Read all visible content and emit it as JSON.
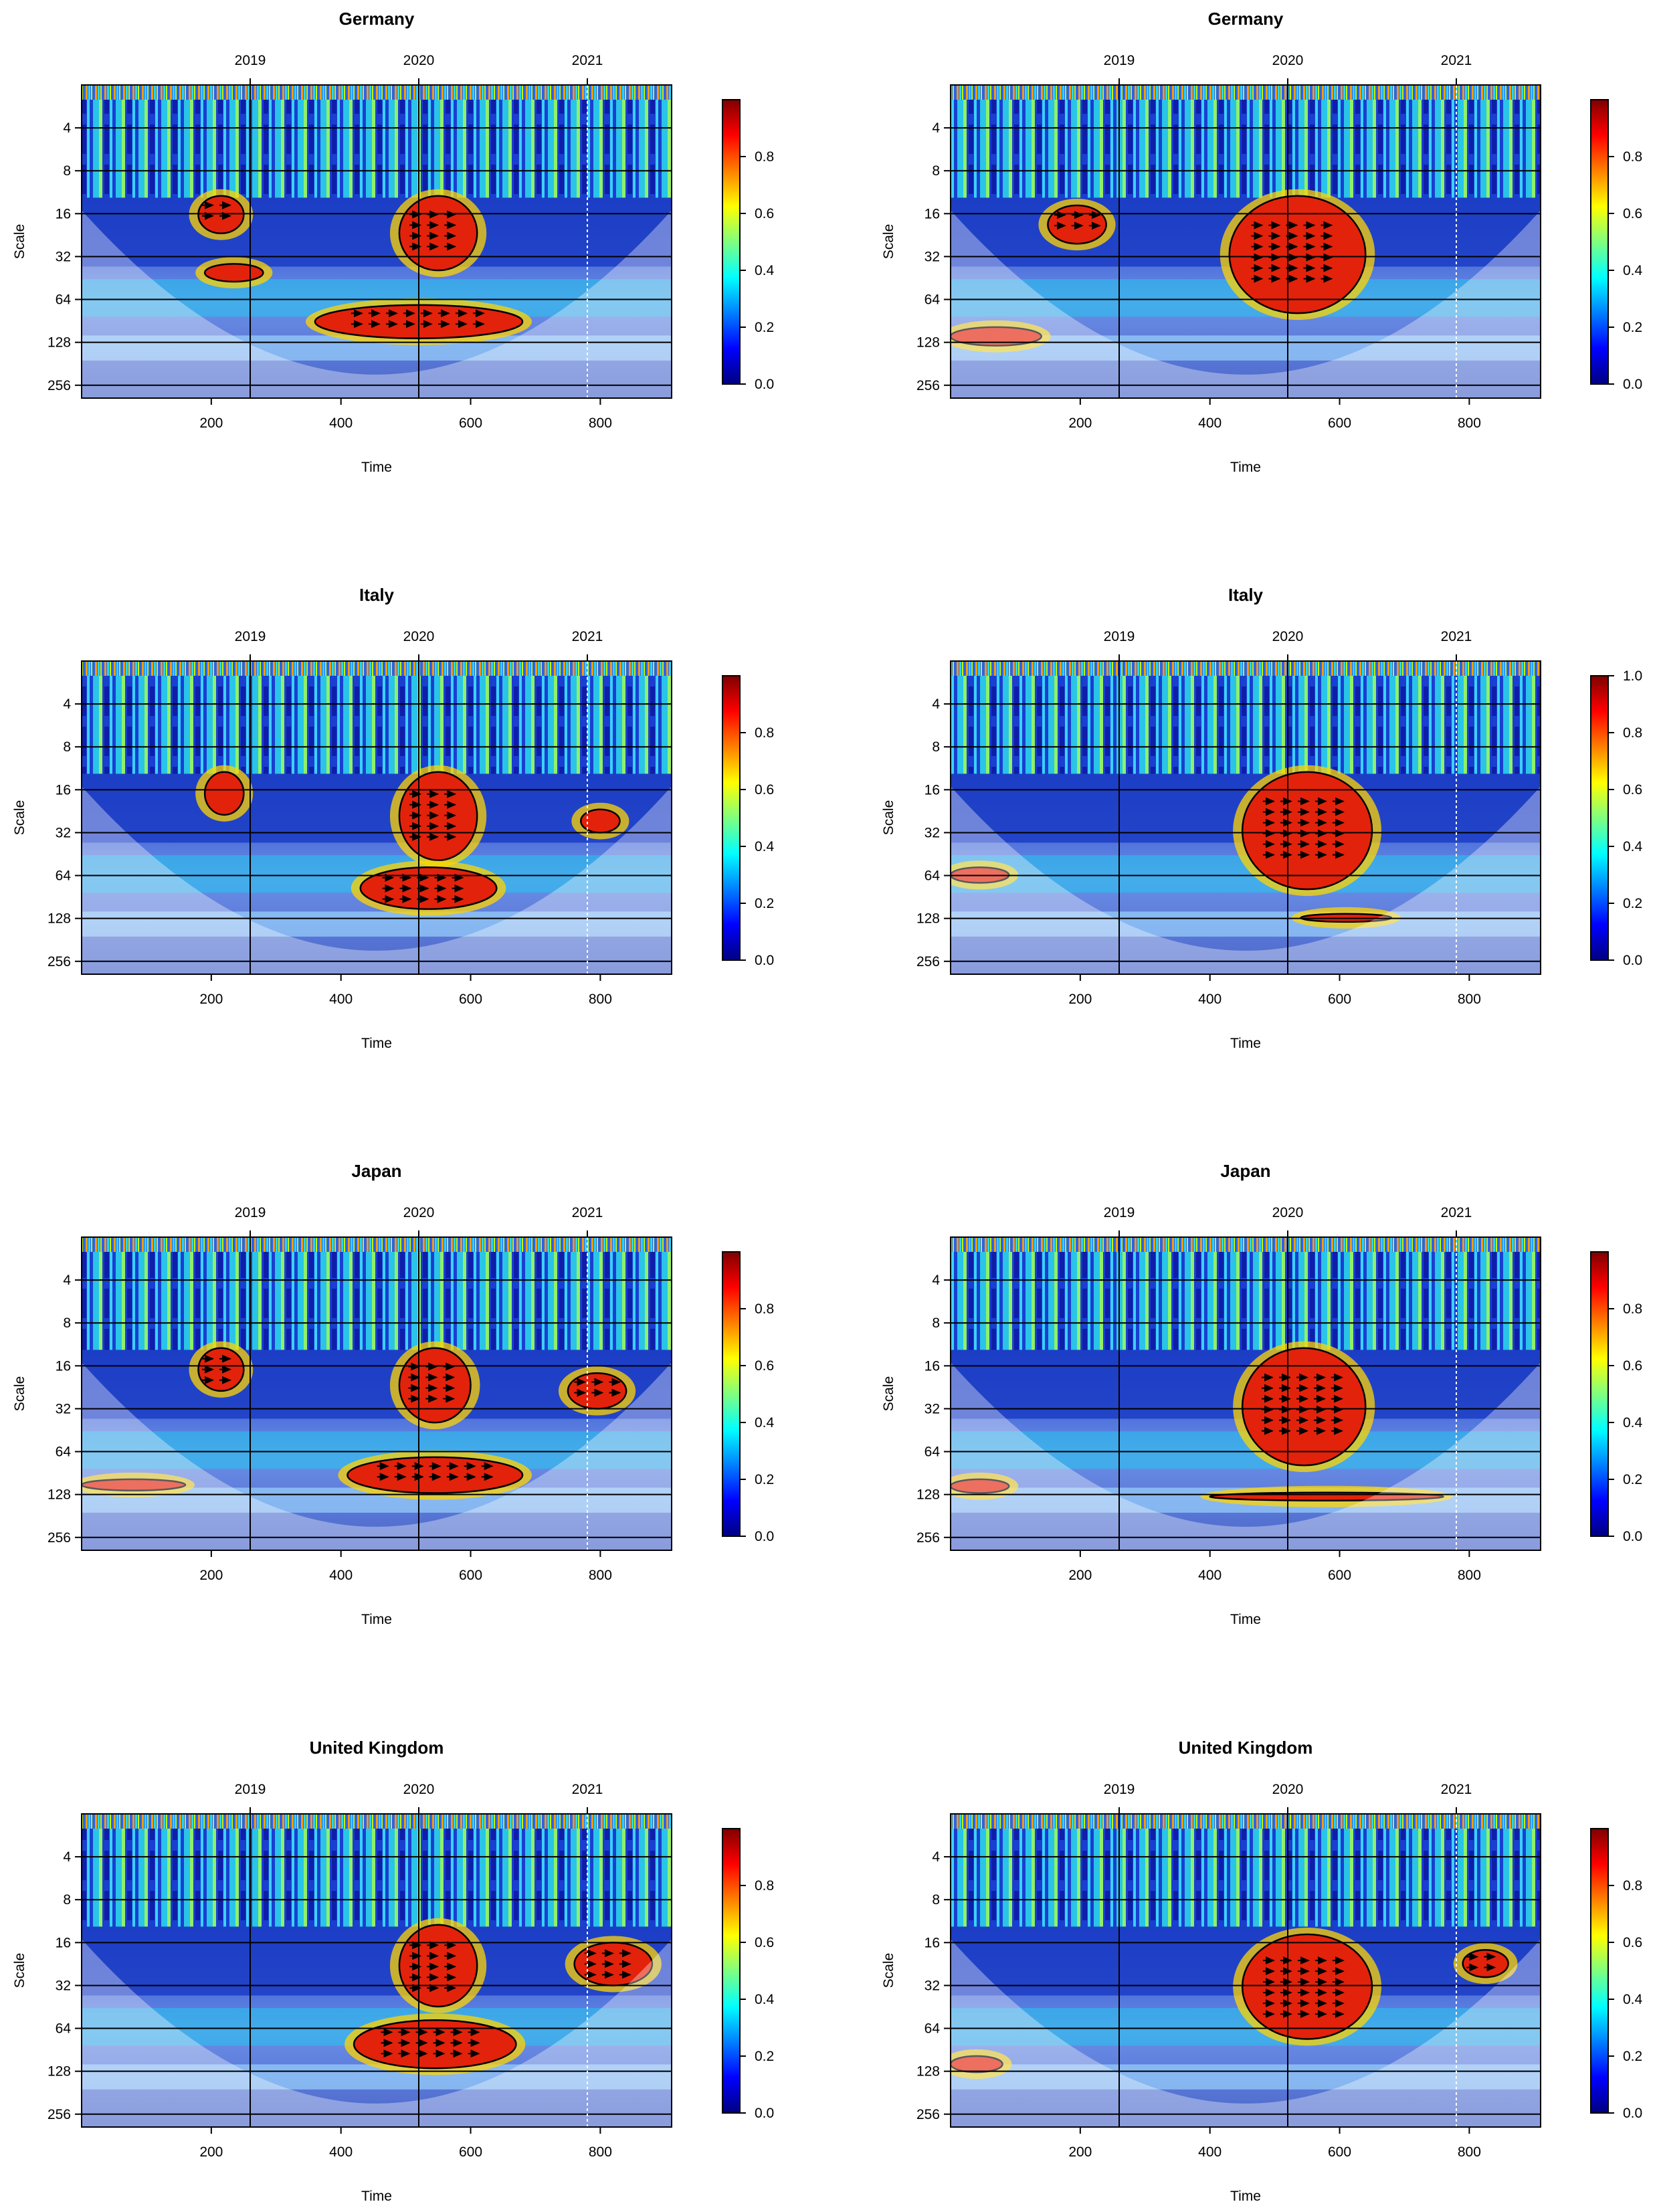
{
  "chart_data": [
    {
      "type": "heatmap",
      "title": "Germany",
      "xlabel": "Time",
      "ylabel": "Scale",
      "xlim": [
        0,
        910
      ],
      "x_ticks": [
        200,
        400,
        600,
        800
      ],
      "y_ticks": [
        4,
        8,
        16,
        32,
        64,
        128,
        256
      ],
      "top_ticks": [
        {
          "label": "2019",
          "x": 260
        },
        {
          "label": "2020",
          "x": 520
        },
        {
          "label": "2021",
          "x": 780
        }
      ],
      "colorbar_ticks": [
        "0.0",
        "0.2",
        "0.4",
        "0.6",
        "0.8"
      ],
      "colorbar_range": [
        0,
        1
      ],
      "significant_regions": [
        {
          "x": [
            180,
            250
          ],
          "scale": [
            12,
            22
          ]
        },
        {
          "x": [
            190,
            280
          ],
          "scale": [
            36,
            48
          ]
        },
        {
          "x": [
            490,
            610
          ],
          "scale": [
            12,
            40
          ]
        },
        {
          "x": [
            360,
            680
          ],
          "scale": [
            70,
            120
          ]
        }
      ]
    },
    {
      "type": "heatmap",
      "title": "Germany",
      "xlabel": "Time",
      "ylabel": "Scale",
      "xlim": [
        0,
        910
      ],
      "x_ticks": [
        200,
        400,
        600,
        800
      ],
      "y_ticks": [
        4,
        8,
        16,
        32,
        64,
        128,
        256
      ],
      "top_ticks": [
        {
          "label": "2019",
          "x": 260
        },
        {
          "label": "2020",
          "x": 520
        },
        {
          "label": "2021",
          "x": 780
        }
      ],
      "colorbar_ticks": [
        "0.0",
        "0.2",
        "0.4",
        "0.6",
        "0.8"
      ],
      "colorbar_range": [
        0,
        1
      ],
      "significant_regions": [
        {
          "x": [
            150,
            240
          ],
          "scale": [
            14,
            26
          ]
        },
        {
          "x": [
            430,
            640
          ],
          "scale": [
            12,
            80
          ]
        },
        {
          "x": [
            0,
            140
          ],
          "scale": [
            100,
            135
          ]
        }
      ]
    },
    {
      "type": "heatmap",
      "title": "Italy",
      "xlabel": "Time",
      "ylabel": "Scale",
      "xlim": [
        0,
        910
      ],
      "x_ticks": [
        200,
        400,
        600,
        800
      ],
      "y_ticks": [
        4,
        8,
        16,
        32,
        64,
        128,
        256
      ],
      "top_ticks": [
        {
          "label": "2019",
          "x": 260
        },
        {
          "label": "2020",
          "x": 520
        },
        {
          "label": "2021",
          "x": 780
        }
      ],
      "colorbar_ticks": [
        "0.0",
        "0.2",
        "0.4",
        "0.6",
        "0.8"
      ],
      "colorbar_range": [
        0,
        1
      ],
      "significant_regions": [
        {
          "x": [
            190,
            250
          ],
          "scale": [
            12,
            24
          ]
        },
        {
          "x": [
            490,
            610
          ],
          "scale": [
            12,
            50
          ]
        },
        {
          "x": [
            430,
            640
          ],
          "scale": [
            56,
            110
          ]
        },
        {
          "x": [
            770,
            830
          ],
          "scale": [
            22,
            32
          ]
        }
      ]
    },
    {
      "type": "heatmap",
      "title": "Italy",
      "xlabel": "Time",
      "ylabel": "Scale",
      "xlim": [
        0,
        910
      ],
      "x_ticks": [
        200,
        400,
        600,
        800
      ],
      "y_ticks": [
        4,
        8,
        16,
        32,
        64,
        128,
        256
      ],
      "top_ticks": [
        {
          "label": "2019",
          "x": 260
        },
        {
          "label": "2020",
          "x": 520
        },
        {
          "label": "2021",
          "x": 780
        }
      ],
      "colorbar_ticks": [
        "0.0",
        "0.2",
        "0.4",
        "0.6",
        "0.8",
        "1.0"
      ],
      "colorbar_range": [
        0,
        1
      ],
      "significant_regions": [
        {
          "x": [
            450,
            650
          ],
          "scale": [
            12,
            80
          ]
        },
        {
          "x": [
            0,
            90
          ],
          "scale": [
            56,
            72
          ]
        },
        {
          "x": [
            540,
            680
          ],
          "scale": [
            120,
            134
          ]
        }
      ]
    },
    {
      "type": "heatmap",
      "title": "Japan",
      "xlabel": "Time",
      "ylabel": "Scale",
      "xlim": [
        0,
        910
      ],
      "x_ticks": [
        200,
        400,
        600,
        800
      ],
      "y_ticks": [
        4,
        8,
        16,
        32,
        64,
        128,
        256
      ],
      "top_ticks": [
        {
          "label": "2019",
          "x": 260
        },
        {
          "label": "2020",
          "x": 520
        },
        {
          "label": "2021",
          "x": 780
        }
      ],
      "colorbar_ticks": [
        "0.0",
        "0.2",
        "0.4",
        "0.6",
        "0.8"
      ],
      "colorbar_range": [
        0,
        1
      ],
      "significant_regions": [
        {
          "x": [
            180,
            250
          ],
          "scale": [
            12,
            24
          ]
        },
        {
          "x": [
            490,
            600
          ],
          "scale": [
            12,
            40
          ]
        },
        {
          "x": [
            410,
            680
          ],
          "scale": [
            70,
            125
          ]
        },
        {
          "x": [
            750,
            840
          ],
          "scale": [
            18,
            32
          ]
        },
        {
          "x": [
            0,
            160
          ],
          "scale": [
            100,
            120
          ]
        }
      ]
    },
    {
      "type": "heatmap",
      "title": "Japan",
      "xlabel": "Time",
      "ylabel": "Scale",
      "xlim": [
        0,
        910
      ],
      "x_ticks": [
        200,
        400,
        600,
        800
      ],
      "y_ticks": [
        4,
        8,
        16,
        32,
        64,
        128,
        256
      ],
      "top_ticks": [
        {
          "label": "2019",
          "x": 260
        },
        {
          "label": "2020",
          "x": 520
        },
        {
          "label": "2021",
          "x": 780
        }
      ],
      "colorbar_ticks": [
        "0.0",
        "0.2",
        "0.4",
        "0.6",
        "0.8"
      ],
      "colorbar_range": [
        0,
        1
      ],
      "significant_regions": [
        {
          "x": [
            450,
            640
          ],
          "scale": [
            12,
            80
          ]
        },
        {
          "x": [
            400,
            760
          ],
          "scale": [
            125,
            140
          ]
        },
        {
          "x": [
            0,
            90
          ],
          "scale": [
            100,
            125
          ]
        }
      ]
    },
    {
      "type": "heatmap",
      "title": "United Kingdom",
      "xlabel": "Time",
      "ylabel": "Scale",
      "xlim": [
        0,
        910
      ],
      "x_ticks": [
        200,
        400,
        600,
        800
      ],
      "y_ticks": [
        4,
        8,
        16,
        32,
        64,
        128,
        256
      ],
      "top_ticks": [
        {
          "label": "2019",
          "x": 260
        },
        {
          "label": "2020",
          "x": 520
        },
        {
          "label": "2021",
          "x": 780
        }
      ],
      "colorbar_ticks": [
        "0.0",
        "0.2",
        "0.4",
        "0.6",
        "0.8"
      ],
      "colorbar_range": [
        0,
        1
      ],
      "significant_regions": [
        {
          "x": [
            490,
            610
          ],
          "scale": [
            12,
            45
          ]
        },
        {
          "x": [
            420,
            670
          ],
          "scale": [
            56,
            122
          ]
        },
        {
          "x": [
            760,
            880
          ],
          "scale": [
            16,
            32
          ]
        }
      ]
    },
    {
      "type": "heatmap",
      "title": "United Kingdom",
      "xlabel": "Time",
      "ylabel": "Scale",
      "xlim": [
        0,
        910
      ],
      "x_ticks": [
        200,
        400,
        600,
        800
      ],
      "y_ticks": [
        4,
        8,
        16,
        32,
        64,
        128,
        256
      ],
      "top_ticks": [
        {
          "label": "2019",
          "x": 260
        },
        {
          "label": "2020",
          "x": 520
        },
        {
          "label": "2021",
          "x": 780
        }
      ],
      "colorbar_ticks": [
        "0.0",
        "0.2",
        "0.4",
        "0.6",
        "0.8"
      ],
      "colorbar_range": [
        0,
        1
      ],
      "significant_regions": [
        {
          "x": [
            450,
            650
          ],
          "scale": [
            14,
            76
          ]
        },
        {
          "x": [
            790,
            860
          ],
          "scale": [
            18,
            28
          ]
        },
        {
          "x": [
            0,
            80
          ],
          "scale": [
            100,
            130
          ]
        }
      ]
    }
  ]
}
